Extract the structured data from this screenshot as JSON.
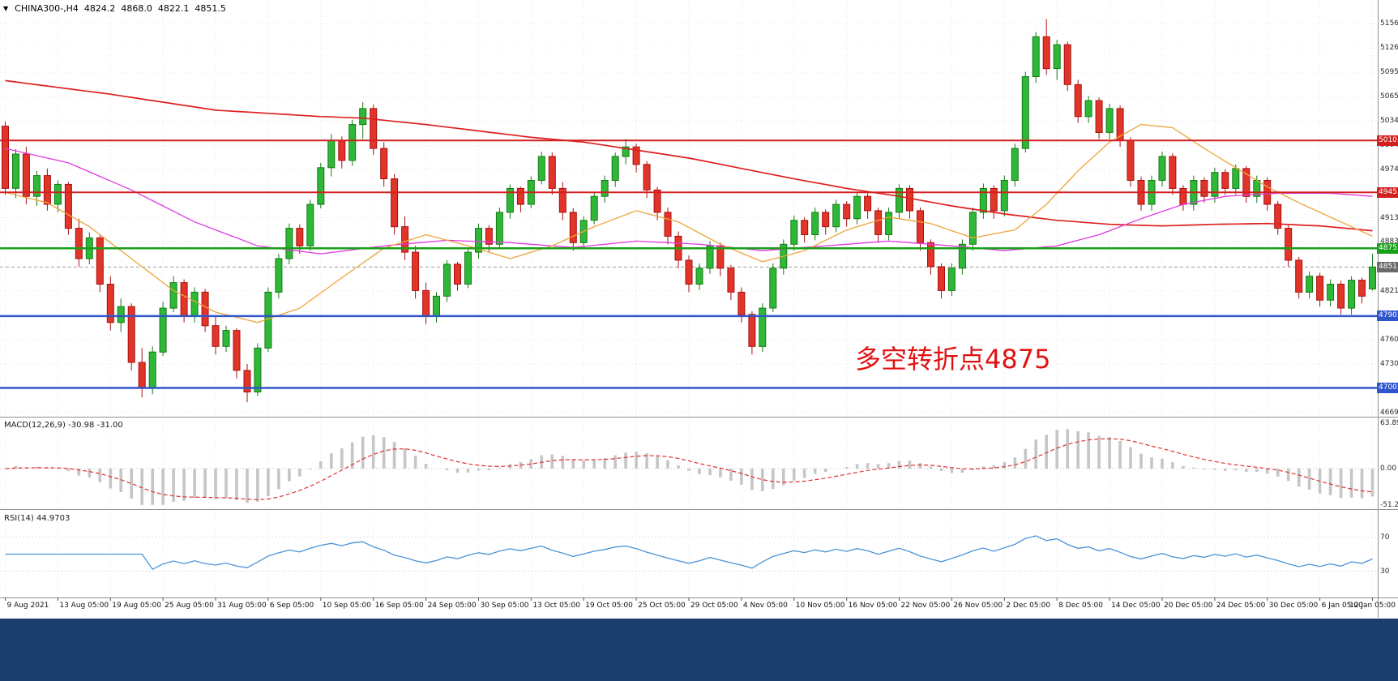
{
  "header": {
    "symbol": "CHINA300-,H4",
    "open": "4824.2",
    "high": "4868.0",
    "low": "4822.1",
    "close": "4851.5"
  },
  "annotation": {
    "text": "多空转折点4875",
    "color": "#e01212"
  },
  "panes": {
    "macd": {
      "label": "MACD(12,26,9) -30.98 -31.00",
      "ticks": [
        {
          "label": "63.89",
          "value": 63.89
        },
        {
          "label": "0.00",
          "value": 0
        },
        {
          "label": "-51.26",
          "value": -51.26
        }
      ]
    },
    "rsi": {
      "label": "RSI(14) 44.9703",
      "ticks": [
        {
          "label": "70",
          "value": 70
        },
        {
          "label": "30",
          "value": 30
        }
      ]
    }
  },
  "price_axis": {
    "ticks": [
      {
        "label": "5156.5",
        "price": 5156.5
      },
      {
        "label": "5126.0",
        "price": 5126
      },
      {
        "label": "5095.5",
        "price": 5095.5
      },
      {
        "label": "5065.0",
        "price": 5065
      },
      {
        "label": "5034.5",
        "price": 5034.5
      },
      {
        "label": "5004.0",
        "price": 5004
      },
      {
        "label": "4974.0",
        "price": 4974
      },
      {
        "label": "4913.0",
        "price": 4913
      },
      {
        "label": "4883.5",
        "price": 4883.5
      },
      {
        "label": "4821.5",
        "price": 4821.5
      },
      {
        "label": "4760.5",
        "price": 4760.5
      },
      {
        "label": "4730.0",
        "price": 4730
      },
      {
        "label": "4669.0",
        "price": 4669
      }
    ],
    "tags": [
      {
        "label": "5010.0",
        "price": 5010,
        "bg": "#d21f1f"
      },
      {
        "label": "4945.0",
        "price": 4945,
        "bg": "#d21f1f"
      },
      {
        "label": "4875.0",
        "price": 4875,
        "bg": "#18a018"
      },
      {
        "label": "4851.5",
        "price": 4851.5,
        "bg": "#6a6a6a"
      },
      {
        "label": "4790.0",
        "price": 4790,
        "bg": "#2f55cd"
      },
      {
        "label": "4700.0",
        "price": 4700,
        "bg": "#2f55cd"
      }
    ]
  },
  "time_axis": {
    "labels": [
      "9 Aug 2021",
      "13 Aug 05:00",
      "19 Aug 05:00",
      "25 Aug 05:00",
      "31 Aug 05:00",
      "6 Sep 05:00",
      "10 Sep 05:00",
      "16 Sep 05:00",
      "24 Sep 05:00",
      "30 Sep 05:00",
      "13 Oct 05:00",
      "19 Oct 05:00",
      "25 Oct 05:00",
      "29 Oct 05:00",
      "4 Nov 05:00",
      "10 Nov 05:00",
      "16 Nov 05:00",
      "22 Nov 05:00",
      "26 Nov 05:00",
      "2 Dec 05:00",
      "8 Dec 05:00",
      "14 Dec 05:00",
      "20 Dec 05:00",
      "24 Dec 05:00",
      "30 Dec 05:00",
      "6 Jan 05:00",
      "12 Jan 05:00"
    ]
  },
  "colors": {
    "up": "#2fb838",
    "up_border": "#157a15",
    "down": "#e2352a",
    "down_border": "#a81010",
    "macd_hist": "#c6c6c6",
    "macd_signal": "#e03030",
    "rsi": "#4a94d8",
    "grid": "#e4e4e4",
    "separator": "#8f8f8f",
    "bottom_bar": "#1b3e6d"
  },
  "chart_data": {
    "type": "candlestick",
    "symbol": "CHINA300-",
    "timeframe": "H4",
    "title": "CHINA300-,H4 4824.2 4868.0 4822.1 4851.5",
    "price_range": [
      4666,
      5186
    ],
    "current_price": 4851.5,
    "levels": [
      {
        "price": 5010,
        "color": "#d21f1f",
        "width": 2
      },
      {
        "price": 4945,
        "color": "#d21f1f",
        "width": 2
      },
      {
        "price": 4875,
        "color": "#18a018",
        "width": 2.5
      },
      {
        "price": 4790,
        "color": "#2f55cd",
        "width": 2.5
      },
      {
        "price": 4700,
        "color": "#2f55cd",
        "width": 2.5
      }
    ],
    "moving_averages": [
      {
        "name": "slow-red",
        "color": "#dd2020",
        "width": 1.7,
        "points": [
          [
            0,
            5085
          ],
          [
            10,
            5068
          ],
          [
            20,
            5048
          ],
          [
            30,
            5040
          ],
          [
            34,
            5038
          ],
          [
            40,
            5030
          ],
          [
            45,
            5022
          ],
          [
            50,
            5014
          ],
          [
            55,
            5008
          ],
          [
            60,
            4998
          ],
          [
            65,
            4988
          ],
          [
            70,
            4975
          ],
          [
            75,
            4962
          ],
          [
            80,
            4950
          ],
          [
            85,
            4940
          ],
          [
            90,
            4928
          ],
          [
            95,
            4918
          ],
          [
            100,
            4910
          ],
          [
            105,
            4905
          ],
          [
            110,
            4903
          ],
          [
            115,
            4905
          ],
          [
            120,
            4906
          ],
          [
            125,
            4903
          ],
          [
            130,
            4897
          ]
        ]
      },
      {
        "name": "mid-magenta",
        "color": "#e03ae0",
        "width": 1.3,
        "points": [
          [
            0,
            5000
          ],
          [
            6,
            4982
          ],
          [
            12,
            4948
          ],
          [
            18,
            4908
          ],
          [
            24,
            4878
          ],
          [
            30,
            4868
          ],
          [
            36,
            4878
          ],
          [
            42,
            4885
          ],
          [
            48,
            4882
          ],
          [
            54,
            4876
          ],
          [
            60,
            4884
          ],
          [
            66,
            4880
          ],
          [
            72,
            4872
          ],
          [
            78,
            4878
          ],
          [
            84,
            4884
          ],
          [
            90,
            4878
          ],
          [
            95,
            4872
          ],
          [
            100,
            4878
          ],
          [
            104,
            4892
          ],
          [
            108,
            4912
          ],
          [
            112,
            4930
          ],
          [
            116,
            4940
          ],
          [
            121,
            4944
          ],
          [
            126,
            4944
          ],
          [
            130,
            4940
          ]
        ]
      },
      {
        "name": "fast-orange",
        "color": "#efa33a",
        "width": 1.3,
        "points": [
          [
            0,
            4945
          ],
          [
            4,
            4932
          ],
          [
            8,
            4902
          ],
          [
            12,
            4862
          ],
          [
            16,
            4822
          ],
          [
            20,
            4795
          ],
          [
            24,
            4782
          ],
          [
            28,
            4800
          ],
          [
            32,
            4838
          ],
          [
            36,
            4875
          ],
          [
            40,
            4892
          ],
          [
            44,
            4878
          ],
          [
            48,
            4862
          ],
          [
            52,
            4878
          ],
          [
            56,
            4902
          ],
          [
            60,
            4922
          ],
          [
            64,
            4908
          ],
          [
            68,
            4880
          ],
          [
            72,
            4858
          ],
          [
            76,
            4872
          ],
          [
            80,
            4898
          ],
          [
            84,
            4914
          ],
          [
            88,
            4906
          ],
          [
            92,
            4888
          ],
          [
            96,
            4898
          ],
          [
            99,
            4930
          ],
          [
            102,
            4972
          ],
          [
            105,
            5008
          ],
          [
            108,
            5030
          ],
          [
            111,
            5026
          ],
          [
            114,
            5000
          ],
          [
            117,
            4976
          ],
          [
            120,
            4952
          ],
          [
            123,
            4932
          ],
          [
            126,
            4914
          ],
          [
            128,
            4902
          ],
          [
            130,
            4890
          ]
        ]
      }
    ],
    "indicators": {
      "macd": {
        "params": [
          12,
          26,
          9
        ],
        "values_text": "-30.98 -31.00",
        "axis_range": [
          -51.26,
          63.89
        ]
      },
      "rsi": {
        "period": 14,
        "value": 44.9703,
        "levels": [
          30,
          70
        ]
      }
    },
    "candles": [
      [
        5028,
        5034,
        4942,
        4950
      ],
      [
        4950,
        4999,
        4938,
        4993
      ],
      [
        4993,
        5002,
        4930,
        4940
      ],
      [
        4940,
        4972,
        4928,
        4966
      ],
      [
        4966,
        4975,
        4922,
        4930
      ],
      [
        4930,
        4960,
        4920,
        4955
      ],
      [
        4955,
        4958,
        4892,
        4900
      ],
      [
        4900,
        4912,
        4852,
        4862
      ],
      [
        4862,
        4895,
        4855,
        4888
      ],
      [
        4888,
        4892,
        4820,
        4830
      ],
      [
        4830,
        4840,
        4772,
        4782
      ],
      [
        4782,
        4812,
        4770,
        4802
      ],
      [
        4802,
        4806,
        4722,
        4732
      ],
      [
        4732,
        4750,
        4688,
        4700
      ],
      [
        4700,
        4752,
        4692,
        4745
      ],
      [
        4745,
        4808,
        4740,
        4800
      ],
      [
        4800,
        4840,
        4795,
        4832
      ],
      [
        4832,
        4836,
        4782,
        4790
      ],
      [
        4790,
        4826,
        4782,
        4820
      ],
      [
        4820,
        4824,
        4770,
        4778
      ],
      [
        4778,
        4790,
        4742,
        4752
      ],
      [
        4752,
        4778,
        4745,
        4772
      ],
      [
        4772,
        4775,
        4712,
        4722
      ],
      [
        4722,
        4730,
        4682,
        4695
      ],
      [
        4695,
        4756,
        4690,
        4750
      ],
      [
        4750,
        4826,
        4745,
        4820
      ],
      [
        4820,
        4868,
        4812,
        4862
      ],
      [
        4862,
        4906,
        4855,
        4900
      ],
      [
        4900,
        4905,
        4868,
        4878
      ],
      [
        4878,
        4936,
        4872,
        4930
      ],
      [
        4930,
        4982,
        4925,
        4976
      ],
      [
        4976,
        5018,
        4965,
        5010
      ],
      [
        5010,
        5015,
        4975,
        4985
      ],
      [
        4985,
        5036,
        4978,
        5030
      ],
      [
        5030,
        5058,
        5012,
        5050
      ],
      [
        5050,
        5055,
        4992,
        5000
      ],
      [
        5000,
        5008,
        4952,
        4962
      ],
      [
        4962,
        4968,
        4892,
        4902
      ],
      [
        4902,
        4915,
        4860,
        4870
      ],
      [
        4870,
        4878,
        4812,
        4822
      ],
      [
        4822,
        4832,
        4780,
        4790
      ],
      [
        4790,
        4820,
        4782,
        4815
      ],
      [
        4815,
        4860,
        4808,
        4855
      ],
      [
        4855,
        4858,
        4822,
        4830
      ],
      [
        4830,
        4875,
        4825,
        4870
      ],
      [
        4870,
        4906,
        4862,
        4900
      ],
      [
        4900,
        4904,
        4870,
        4880
      ],
      [
        4880,
        4926,
        4875,
        4920
      ],
      [
        4920,
        4955,
        4912,
        4950
      ],
      [
        4950,
        4952,
        4920,
        4930
      ],
      [
        4930,
        4965,
        4925,
        4960
      ],
      [
        4960,
        4996,
        4955,
        4990
      ],
      [
        4990,
        4995,
        4942,
        4950
      ],
      [
        4950,
        4958,
        4910,
        4920
      ],
      [
        4920,
        4925,
        4872,
        4882
      ],
      [
        4882,
        4915,
        4875,
        4910
      ],
      [
        4910,
        4945,
        4905,
        4940
      ],
      [
        4940,
        4966,
        4932,
        4960
      ],
      [
        4960,
        4995,
        4952,
        4990
      ],
      [
        4990,
        5012,
        4980,
        5002
      ],
      [
        5002,
        5006,
        4970,
        4980
      ],
      [
        4980,
        4984,
        4938,
        4948
      ],
      [
        4948,
        4952,
        4910,
        4920
      ],
      [
        4920,
        4926,
        4880,
        4890
      ],
      [
        4890,
        4896,
        4850,
        4860
      ],
      [
        4860,
        4866,
        4820,
        4830
      ],
      [
        4830,
        4856,
        4823,
        4850
      ],
      [
        4850,
        4884,
        4843,
        4878
      ],
      [
        4878,
        4882,
        4840,
        4850
      ],
      [
        4850,
        4854,
        4810,
        4820
      ],
      [
        4820,
        4826,
        4782,
        4792
      ],
      [
        4792,
        4796,
        4742,
        4752
      ],
      [
        4752,
        4806,
        4745,
        4800
      ],
      [
        4800,
        4856,
        4795,
        4850
      ],
      [
        4850,
        4886,
        4842,
        4880
      ],
      [
        4880,
        4916,
        4872,
        4910
      ],
      [
        4910,
        4914,
        4882,
        4892
      ],
      [
        4892,
        4926,
        4885,
        4920
      ],
      [
        4920,
        4924,
        4892,
        4902
      ],
      [
        4902,
        4936,
        4895,
        4930
      ],
      [
        4930,
        4934,
        4902,
        4912
      ],
      [
        4912,
        4945,
        4905,
        4940
      ],
      [
        4940,
        4944,
        4912,
        4922
      ],
      [
        4922,
        4926,
        4882,
        4892
      ],
      [
        4892,
        4926,
        4885,
        4920
      ],
      [
        4920,
        4955,
        4912,
        4950
      ],
      [
        4950,
        4954,
        4912,
        4922
      ],
      [
        4922,
        4926,
        4872,
        4882
      ],
      [
        4882,
        4886,
        4842,
        4852
      ],
      [
        4852,
        4856,
        4812,
        4822
      ],
      [
        4822,
        4856,
        4815,
        4850
      ],
      [
        4850,
        4886,
        4842,
        4880
      ],
      [
        4880,
        4926,
        4872,
        4920
      ],
      [
        4920,
        4956,
        4912,
        4950
      ],
      [
        4950,
        4954,
        4912,
        4922
      ],
      [
        4922,
        4966,
        4915,
        4960
      ],
      [
        4960,
        5006,
        4952,
        5000
      ],
      [
        5000,
        5096,
        4995,
        5090
      ],
      [
        5090,
        5146,
        5082,
        5140
      ],
      [
        5140,
        5162,
        5092,
        5100
      ],
      [
        5100,
        5136,
        5086,
        5130
      ],
      [
        5130,
        5134,
        5072,
        5080
      ],
      [
        5080,
        5086,
        5032,
        5040
      ],
      [
        5040,
        5066,
        5032,
        5060
      ],
      [
        5060,
        5064,
        5012,
        5020
      ],
      [
        5020,
        5056,
        5012,
        5050
      ],
      [
        5050,
        5054,
        5002,
        5010
      ],
      [
        5010,
        5014,
        4952,
        4960
      ],
      [
        4960,
        4965,
        4922,
        4930
      ],
      [
        4930,
        4966,
        4922,
        4960
      ],
      [
        4960,
        4996,
        4952,
        4990
      ],
      [
        4990,
        4994,
        4942,
        4950
      ],
      [
        4950,
        4954,
        4922,
        4930
      ],
      [
        4930,
        4966,
        4922,
        4960
      ],
      [
        4960,
        4964,
        4932,
        4940
      ],
      [
        4940,
        4976,
        4932,
        4970
      ],
      [
        4970,
        4974,
        4942,
        4950
      ],
      [
        4950,
        4980,
        4942,
        4975
      ],
      [
        4975,
        4978,
        4932,
        4940
      ],
      [
        4940,
        4966,
        4932,
        4960
      ],
      [
        4960,
        4964,
        4922,
        4930
      ],
      [
        4930,
        4934,
        4892,
        4900
      ],
      [
        4900,
        4904,
        4852,
        4860
      ],
      [
        4860,
        4864,
        4812,
        4820
      ],
      [
        4820,
        4846,
        4812,
        4840
      ],
      [
        4840,
        4844,
        4802,
        4810
      ],
      [
        4810,
        4836,
        4802,
        4830
      ],
      [
        4830,
        4834,
        4792,
        4800
      ],
      [
        4800,
        4840,
        4792,
        4835
      ],
      [
        4835,
        4838,
        4806,
        4815
      ],
      [
        4824.2,
        4868,
        4822.1,
        4851.5
      ]
    ]
  }
}
